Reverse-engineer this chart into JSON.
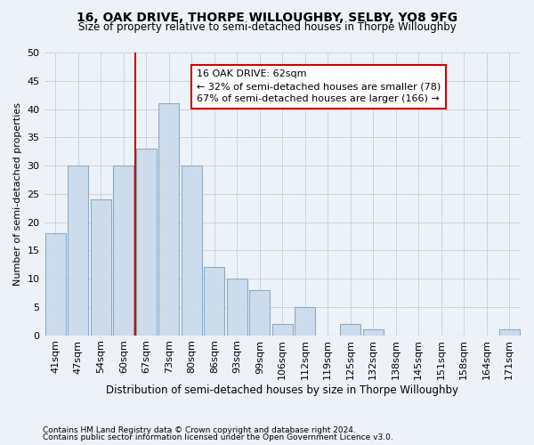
{
  "title": "16, OAK DRIVE, THORPE WILLOUGHBY, SELBY, YO8 9FG",
  "subtitle": "Size of property relative to semi-detached houses in Thorpe Willoughby",
  "xlabel": "Distribution of semi-detached houses by size in Thorpe Willoughby",
  "ylabel": "Number of semi-detached properties",
  "footnote1": "Contains HM Land Registry data © Crown copyright and database right 2024.",
  "footnote2": "Contains public sector information licensed under the Open Government Licence v3.0.",
  "categories": [
    "41sqm",
    "47sqm",
    "54sqm",
    "60sqm",
    "67sqm",
    "73sqm",
    "80sqm",
    "86sqm",
    "93sqm",
    "99sqm",
    "106sqm",
    "112sqm",
    "119sqm",
    "125sqm",
    "132sqm",
    "138sqm",
    "145sqm",
    "151sqm",
    "158sqm",
    "164sqm",
    "171sqm"
  ],
  "values": [
    18,
    30,
    24,
    30,
    33,
    41,
    30,
    12,
    10,
    8,
    2,
    5,
    0,
    2,
    1,
    0,
    0,
    0,
    0,
    0,
    1
  ],
  "bar_color": "#ccdcec",
  "bar_edge_color": "#8aaac8",
  "vline_x": 3.5,
  "annotation_text": "16 OAK DRIVE: 62sqm\n← 32% of semi-detached houses are smaller (78)\n67% of semi-detached houses are larger (166) →",
  "annotation_box_color": "white",
  "annotation_box_edge_color": "#cc0000",
  "vline_color": "#cc0000",
  "ylim": [
    0,
    50
  ],
  "yticks": [
    0,
    5,
    10,
    15,
    20,
    25,
    30,
    35,
    40,
    45,
    50
  ],
  "grid_color": "#c8d4e0",
  "background_color": "#edf2f8",
  "title_fontsize": 10,
  "subtitle_fontsize": 8.5,
  "tick_fontsize": 8,
  "ylabel_fontsize": 8,
  "xlabel_fontsize": 8.5,
  "footnote_fontsize": 6.5
}
